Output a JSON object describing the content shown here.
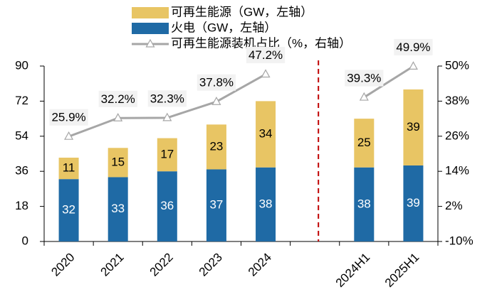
{
  "chart_data": {
    "type": "bar",
    "categories": [
      "2020",
      "2021",
      "2022",
      "2023",
      "2024",
      null,
      "2024H1",
      "2025H1"
    ],
    "series": [
      {
        "name": "可再生能源（GW，左轴）",
        "type": "bar",
        "color": "#e8c564",
        "label_color": "#000000",
        "values": [
          11,
          15,
          17,
          23,
          34,
          null,
          25,
          39
        ]
      },
      {
        "name": "火电（GW，左轴）",
        "type": "bar",
        "color": "#1f6aa5",
        "label_color": "#ffffff",
        "values": [
          32,
          33,
          36,
          37,
          38,
          null,
          38,
          39
        ]
      },
      {
        "name": "可再生能源装机占比（%，右轴）",
        "type": "line",
        "axis": "y2",
        "color": "#a6a6a6",
        "values": [
          25.9,
          32.2,
          32.3,
          37.8,
          47.2,
          null,
          39.3,
          49.9
        ],
        "value_labels": [
          "25.9%",
          "32.2%",
          "32.3%",
          "37.8%",
          "47.2%",
          null,
          "39.3%",
          "49.9%"
        ]
      }
    ],
    "ylim": [
      0,
      90
    ],
    "yticks": [
      0,
      18,
      36,
      54,
      72,
      90
    ],
    "y2lim": [
      -10,
      50
    ],
    "y2ticks": [
      {
        "value": -10,
        "label": "-10%"
      },
      {
        "value": 2,
        "label": "2%"
      },
      {
        "value": 14,
        "label": "14%"
      },
      {
        "value": 26,
        "label": "26%"
      },
      {
        "value": 38,
        "label": "38%"
      },
      {
        "value": 50,
        "label": "50%"
      }
    ],
    "stacked": true
  }
}
